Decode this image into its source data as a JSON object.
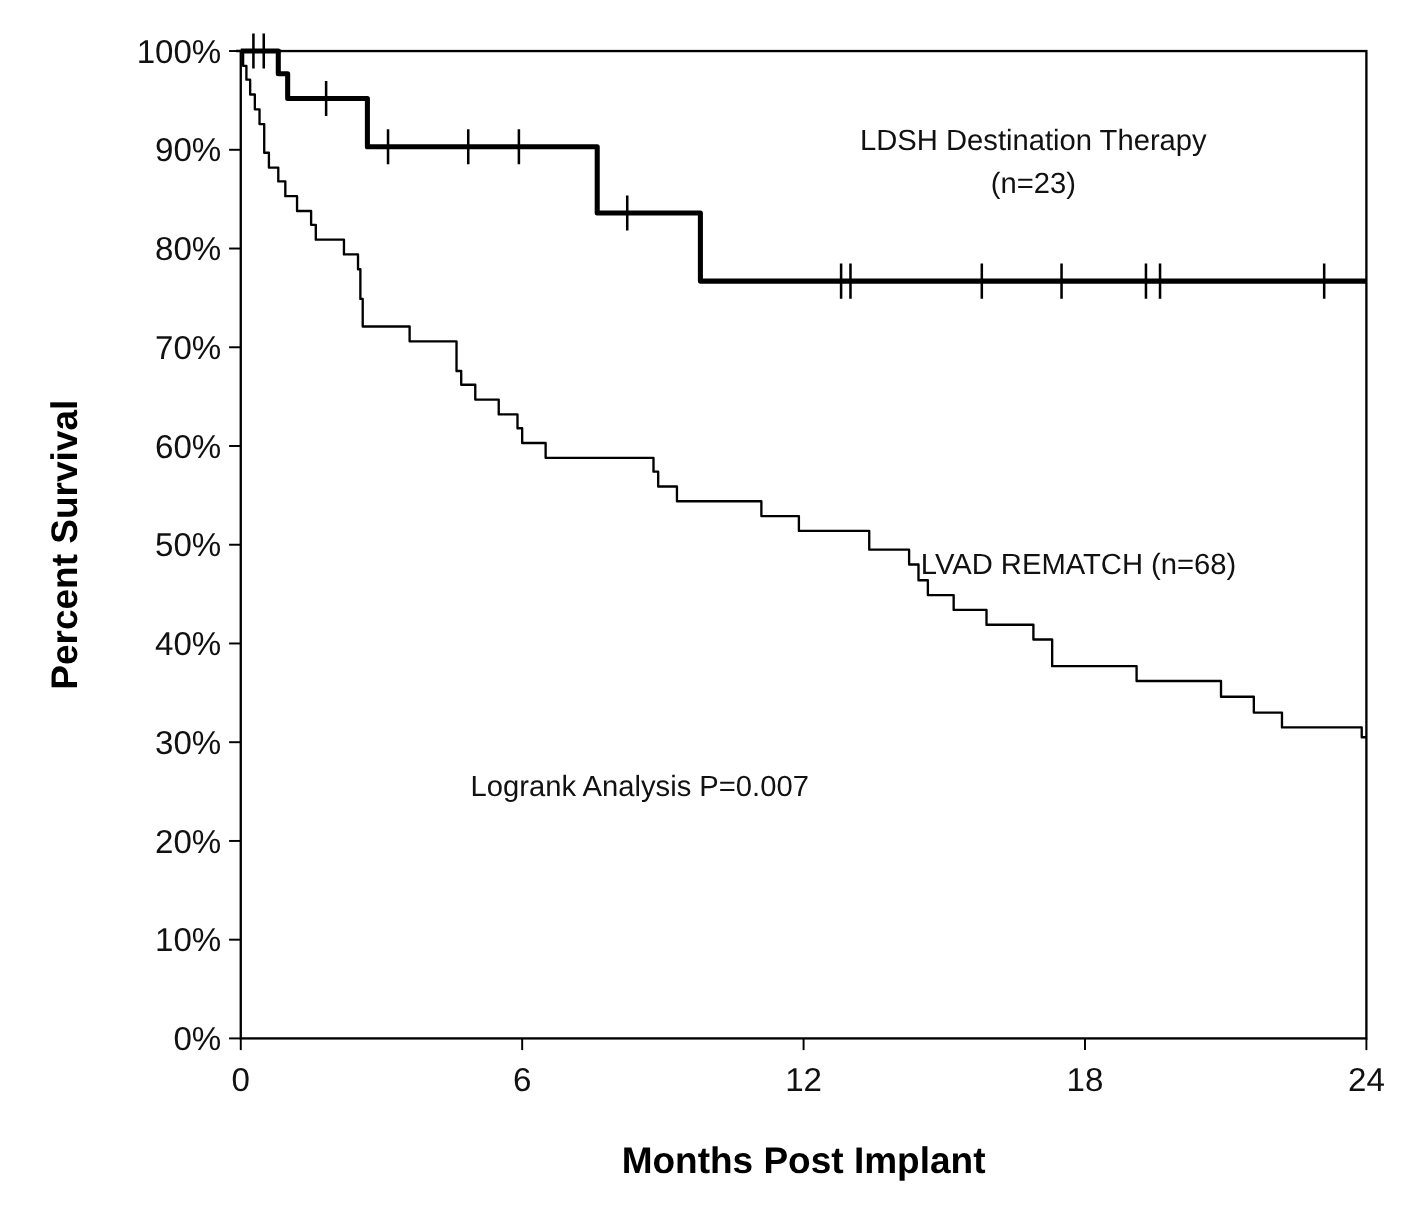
{
  "chart_data": {
    "type": "step",
    "xlabel": "Months Post Implant",
    "ylabel": "Percent Survival",
    "xlim": [
      0,
      24
    ],
    "ylim": [
      0,
      100
    ],
    "xticks": [
      0,
      6,
      12,
      18,
      24
    ],
    "yticks": [
      {
        "value": 0,
        "label": "0%"
      },
      {
        "value": 10,
        "label": "10%"
      },
      {
        "value": 20,
        "label": "20%"
      },
      {
        "value": 30,
        "label": "30%"
      },
      {
        "value": 40,
        "label": "40%"
      },
      {
        "value": 50,
        "label": "50%"
      },
      {
        "value": 60,
        "label": "60%"
      },
      {
        "value": 70,
        "label": "70%"
      },
      {
        "value": 80,
        "label": "80%"
      },
      {
        "value": 90,
        "label": "90%"
      },
      {
        "value": 100,
        "label": "100%"
      }
    ],
    "grid": false,
    "series": [
      {
        "name": "LDSH Destination Therapy (n=23)",
        "color": "#000000",
        "x": [
          0,
          0.8,
          1.0,
          2.7,
          7.6,
          9.8,
          24
        ],
        "values": [
          100,
          97.7,
          95.2,
          90.3,
          83.6,
          76.7,
          76.7
        ]
      },
      {
        "name": "LVAD REMATCH (n=68)",
        "color": "#000000",
        "x": [
          0,
          0.05,
          0.12,
          0.2,
          0.3,
          0.4,
          0.5,
          0.6,
          0.8,
          0.95,
          1.2,
          1.5,
          1.6,
          2.2,
          2.5,
          2.55,
          2.6,
          3.6,
          4.6,
          4.7,
          5.0,
          5.5,
          5.9,
          6.0,
          6.5,
          8.8,
          8.9,
          9.3,
          11.1,
          11.9,
          13.4,
          14.25,
          14.45,
          14.65,
          15.2,
          15.9,
          16.9,
          17.3,
          19.1,
          20.9,
          21.6,
          22.2,
          23.9,
          24
        ],
        "values": [
          100,
          98.5,
          97.1,
          95.6,
          94.1,
          92.6,
          89.7,
          88.2,
          86.8,
          85.3,
          83.8,
          82.4,
          80.9,
          79.4,
          77.9,
          74.9,
          72.1,
          70.6,
          67.6,
          66.2,
          64.7,
          63.2,
          61.8,
          60.3,
          58.8,
          57.4,
          55.9,
          54.4,
          52.9,
          51.4,
          49.5,
          48.0,
          46.4,
          44.9,
          43.4,
          41.9,
          40.4,
          37.7,
          36.2,
          34.6,
          33.0,
          31.5,
          30.5,
          30.5
        ]
      },
      {
        "type": "scatter",
        "marker": "cross",
        "color": "#000000",
        "x": [
          0.27,
          0.49,
          1.82,
          3.14,
          4.85,
          5.93,
          8.24,
          12.8,
          13.0,
          15.8,
          17.5,
          19.3,
          19.6,
          23.1
        ],
        "values": [
          100,
          100,
          95.2,
          90.3,
          90.3,
          90.3,
          83.6,
          76.7,
          76.7,
          76.7,
          76.7,
          76.7,
          76.7,
          76.7
        ]
      }
    ],
    "annotations": [
      "Logrank Analysis P=0.007"
    ]
  }
}
